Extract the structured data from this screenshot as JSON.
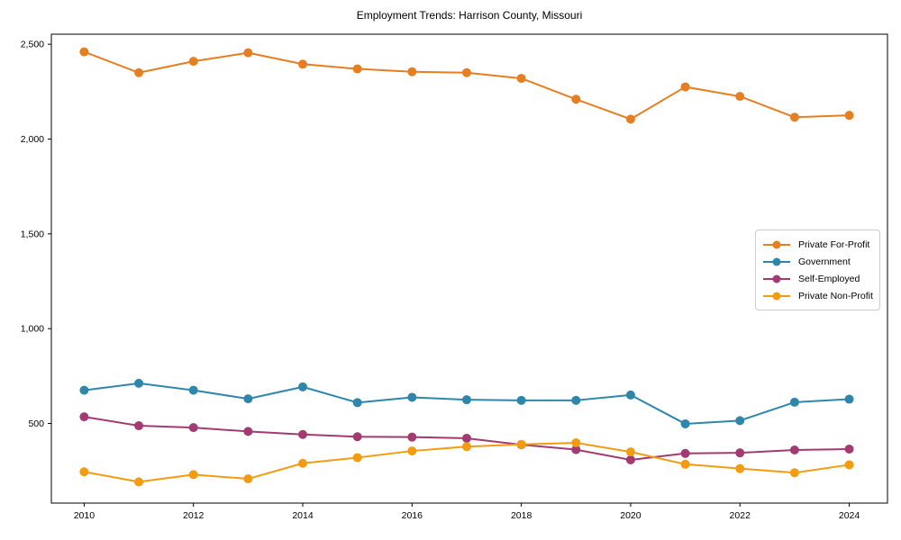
{
  "window": {
    "background_color": "#ffffff",
    "axes_color": "#000000",
    "legend_border_color": "#cccccc"
  },
  "chart_data": {
    "type": "line",
    "title": "Employment Trends: Harrison County, Missouri",
    "xlabel": "",
    "ylabel": "",
    "grid": false,
    "legend_position": "right-middle",
    "xlim": [
      2009.4,
      2024.7
    ],
    "ylim": [
      80,
      2553
    ],
    "x": [
      2010,
      2011,
      2012,
      2013,
      2014,
      2015,
      2016,
      2017,
      2018,
      2019,
      2020,
      2021,
      2022,
      2023,
      2024
    ],
    "x_ticks": [
      2010,
      2012,
      2014,
      2016,
      2018,
      2020,
      2022,
      2024
    ],
    "x_tick_labels": [
      "2010",
      "2012",
      "2014",
      "2016",
      "2018",
      "2020",
      "2022",
      "2024"
    ],
    "y_ticks": [
      500,
      1000,
      1500,
      2000,
      2500
    ],
    "y_tick_labels": [
      "500",
      "1,000",
      "1,500",
      "2,000",
      "2,500"
    ],
    "marker": "circle",
    "series": [
      {
        "name": "Private For-Profit",
        "color": "#E67E22",
        "values": [
          2460,
          2350,
          2410,
          2455,
          2395,
          2370,
          2355,
          2350,
          2320,
          2210,
          2105,
          2275,
          2225,
          2115,
          2125
        ]
      },
      {
        "name": "Government",
        "color": "#2E86AB",
        "values": [
          675,
          712,
          675,
          630,
          693,
          610,
          638,
          625,
          622,
          622,
          650,
          498,
          515,
          612,
          628
        ]
      },
      {
        "name": "Self-Employed",
        "color": "#A23B72",
        "values": [
          535,
          488,
          478,
          458,
          442,
          430,
          428,
          422,
          388,
          362,
          308,
          342,
          345,
          360,
          365
        ]
      },
      {
        "name": "Private Non-Profit",
        "color": "#F39C12",
        "values": [
          245,
          192,
          230,
          208,
          290,
          320,
          355,
          378,
          390,
          398,
          350,
          285,
          262,
          240,
          282
        ]
      }
    ]
  }
}
